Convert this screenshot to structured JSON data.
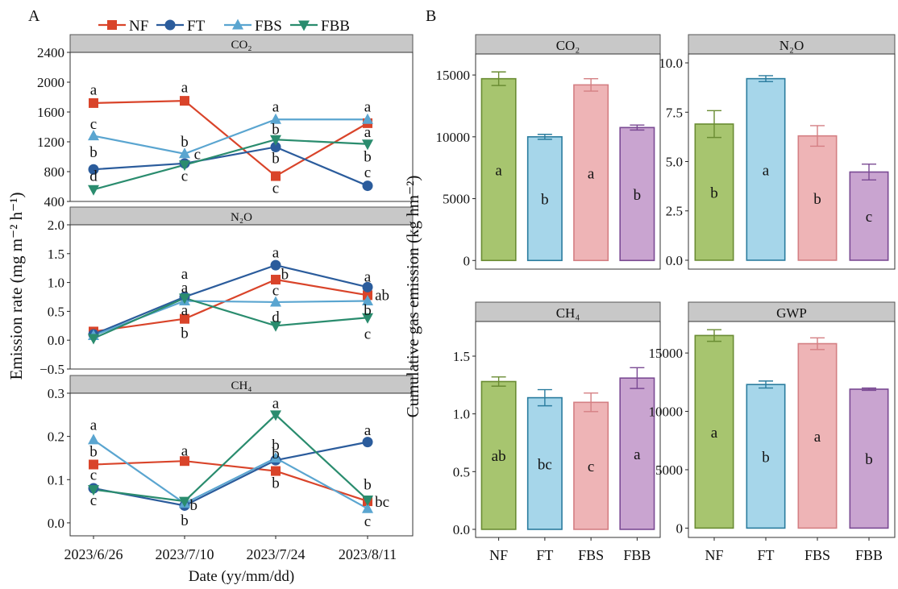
{
  "panel_labels": {
    "a": "A",
    "b": "B"
  },
  "legend": [
    {
      "name": "NF",
      "color": "#d9442a",
      "marker": "square"
    },
    {
      "name": "FT",
      "color": "#2b5c9c",
      "marker": "circle"
    },
    {
      "name": "FBS",
      "color": "#5aa5d0",
      "marker": "triangle-up"
    },
    {
      "name": "FBB",
      "color": "#2a8c6e",
      "marker": "triangle-down"
    }
  ],
  "chart_data": [
    {
      "type": "line",
      "id": "A",
      "xlabel": "Date (yy/mm/dd)",
      "ylabel": "Emission rate (mg m⁻² h⁻¹)",
      "categories": [
        "2023/6/26",
        "2023/7/10",
        "2023/7/24",
        "2023/8/11"
      ],
      "facets": [
        {
          "title": "CO₂",
          "ylim": [
            400,
            2400
          ],
          "ticks": [
            400,
            800,
            1200,
            1600,
            2000,
            2400
          ],
          "tick_labels": [
            "400",
            "800",
            "1200",
            "1600",
            "2000",
            "2400"
          ],
          "series": [
            {
              "name": "NF",
              "values": [
                1720,
                1750,
                740,
                1450
              ]
            },
            {
              "name": "FT",
              "values": [
                830,
                910,
                1130,
                610
              ]
            },
            {
              "name": "FBS",
              "values": [
                1280,
                1040,
                1500,
                1500
              ]
            },
            {
              "name": "FBB",
              "values": [
                560,
                890,
                1230,
                1170
              ]
            }
          ],
          "letters": [
            {
              "text": "a",
              "x": 0,
              "y": 1900
            },
            {
              "text": "c",
              "x": 0,
              "y": 1440
            },
            {
              "text": "b",
              "x": 0,
              "y": 1060
            },
            {
              "text": "d",
              "x": 0,
              "y": 740
            },
            {
              "text": "a",
              "x": 1,
              "y": 1930
            },
            {
              "text": "b",
              "x": 1,
              "y": 1200
            },
            {
              "text": "c",
              "x": 1.14,
              "y": 1030
            },
            {
              "text": "c",
              "x": 1,
              "y": 740
            },
            {
              "text": "a",
              "x": 2,
              "y": 1670
            },
            {
              "text": "b",
              "x": 2,
              "y": 1370
            },
            {
              "text": "b",
              "x": 2,
              "y": 980
            },
            {
              "text": "c",
              "x": 2,
              "y": 580
            },
            {
              "text": "a",
              "x": 3,
              "y": 1670
            },
            {
              "text": "a",
              "x": 3,
              "y": 1330
            },
            {
              "text": "b",
              "x": 3,
              "y": 1000
            },
            {
              "text": "c",
              "x": 3,
              "y": 790
            }
          ]
        },
        {
          "title": "N₂O",
          "ylim": [
            -0.5,
            2.0
          ],
          "ticks": [
            -0.5,
            0.0,
            0.5,
            1.0,
            1.5,
            2.0
          ],
          "tick_labels": [
            "−0.5",
            "0.0",
            "0.5",
            "1.0",
            "1.5",
            "2.0"
          ],
          "series": [
            {
              "name": "NF",
              "values": [
                0.15,
                0.37,
                1.05,
                0.78
              ]
            },
            {
              "name": "FT",
              "values": [
                0.1,
                0.75,
                1.3,
                0.92
              ]
            },
            {
              "name": "FBS",
              "values": [
                0.08,
                0.68,
                0.66,
                0.68
              ]
            },
            {
              "name": "FBB",
              "values": [
                0.03,
                0.73,
                0.25,
                0.39
              ]
            }
          ],
          "letters": [
            {
              "text": "a",
              "x": 1,
              "y": 1.15
            },
            {
              "text": "a",
              "x": 1,
              "y": 0.91
            },
            {
              "text": "a",
              "x": 1,
              "y": 0.52
            },
            {
              "text": "b",
              "x": 1,
              "y": 0.12
            },
            {
              "text": "a",
              "x": 2,
              "y": 1.52
            },
            {
              "text": "b",
              "x": 2.1,
              "y": 1.14
            },
            {
              "text": "c",
              "x": 2,
              "y": 0.86
            },
            {
              "text": "d",
              "x": 2,
              "y": 0.4
            },
            {
              "text": "a",
              "x": 3,
              "y": 1.1
            },
            {
              "text": "ab",
              "x": 3.16,
              "y": 0.78
            },
            {
              "text": "b",
              "x": 3,
              "y": 0.52
            },
            {
              "text": "c",
              "x": 3,
              "y": 0.11
            }
          ]
        },
        {
          "title": "CH₄",
          "ylim": [
            -0.03,
            0.3
          ],
          "ticks": [
            0.0,
            0.1,
            0.2,
            0.3
          ],
          "tick_labels": [
            "0.0",
            "0.1",
            "0.2",
            "0.3"
          ],
          "series": [
            {
              "name": "NF",
              "values": [
                0.135,
                0.143,
                0.12,
                0.05
              ]
            },
            {
              "name": "FT",
              "values": [
                0.08,
                0.04,
                0.145,
                0.187
              ]
            },
            {
              "name": "FBS",
              "values": [
                0.192,
                0.045,
                0.15,
                0.033
              ]
            },
            {
              "name": "FBB",
              "values": [
                0.077,
                0.05,
                0.25,
                0.053
              ]
            }
          ],
          "letters": [
            {
              "text": "a",
              "x": 0,
              "y": 0.226
            },
            {
              "text": "b",
              "x": 0,
              "y": 0.165
            },
            {
              "text": "c",
              "x": 0,
              "y": 0.111
            },
            {
              "text": "c",
              "x": 0,
              "y": 0.052
            },
            {
              "text": "a",
              "x": 1,
              "y": 0.167
            },
            {
              "text": "b",
              "x": 1.1,
              "y": 0.041
            },
            {
              "text": "b",
              "x": 1,
              "y": 0.005
            },
            {
              "text": "a",
              "x": 2,
              "y": 0.277
            },
            {
              "text": "b",
              "x": 2,
              "y": 0.18
            },
            {
              "text": "b",
              "x": 2,
              "y": 0.16
            },
            {
              "text": "b",
              "x": 2,
              "y": 0.092
            },
            {
              "text": "a",
              "x": 3,
              "y": 0.214
            },
            {
              "text": "b",
              "x": 3,
              "y": 0.088
            },
            {
              "text": "bc",
              "x": 3.16,
              "y": 0.048
            },
            {
              "text": "c",
              "x": 3,
              "y": 0.004
            }
          ]
        }
      ]
    },
    {
      "type": "bar",
      "id": "B",
      "ylabel": "Cumulative gas emission (kg hm⁻²)",
      "categories": [
        "NF",
        "FT",
        "FBS",
        "FBB"
      ],
      "fill_colors": [
        "#a7c56f",
        "#a6d6ea",
        "#eeb4b6",
        "#c9a4d0"
      ],
      "edge_colors": [
        "#6a8c33",
        "#2a7c9e",
        "#d47f83",
        "#7a4a93"
      ],
      "facets": [
        {
          "title": "CO₂",
          "ylim": [
            -700,
            16700
          ],
          "ticks": [
            0,
            5000,
            10000,
            15000
          ],
          "tick_labels": [
            "0",
            "5000",
            "10000",
            "15000"
          ],
          "values": [
            14700,
            10000,
            14200,
            10750
          ],
          "errors": [
            550,
            200,
            500,
            200
          ],
          "letters": [
            "a",
            "b",
            "a",
            "b"
          ]
        },
        {
          "title": "N₂O",
          "ylim": [
            -0.45,
            10.45
          ],
          "ticks": [
            0.0,
            2.5,
            5.0,
            7.5,
            10.0
          ],
          "tick_labels": [
            "0.0",
            "2.5",
            "5.0",
            "7.5",
            "10.0"
          ],
          "values": [
            6.9,
            9.2,
            6.3,
            4.47
          ],
          "errors": [
            0.68,
            0.15,
            0.52,
            0.4
          ],
          "letters": [
            "b",
            "a",
            "b",
            "c"
          ]
        },
        {
          "title": "CH₄",
          "ylim": [
            -0.07,
            1.8
          ],
          "ticks": [
            0.0,
            0.5,
            1.0,
            1.5
          ],
          "tick_labels": [
            "0.0",
            "0.5",
            "1.0",
            "1.5"
          ],
          "values": [
            1.28,
            1.14,
            1.1,
            1.31
          ],
          "errors": [
            0.04,
            0.07,
            0.08,
            0.09
          ],
          "letters": [
            "ab",
            "bc",
            "c",
            "a"
          ]
        },
        {
          "title": "GWP",
          "ylim": [
            -800,
            17700
          ],
          "ticks": [
            0,
            5000,
            10000,
            15000
          ],
          "tick_labels": [
            "0",
            "5000",
            "10000",
            "15000"
          ],
          "values": [
            16500,
            12300,
            15800,
            11900
          ],
          "errors": [
            500,
            300,
            500,
            100
          ],
          "letters": [
            "a",
            "b",
            "a",
            "b"
          ]
        }
      ]
    }
  ]
}
